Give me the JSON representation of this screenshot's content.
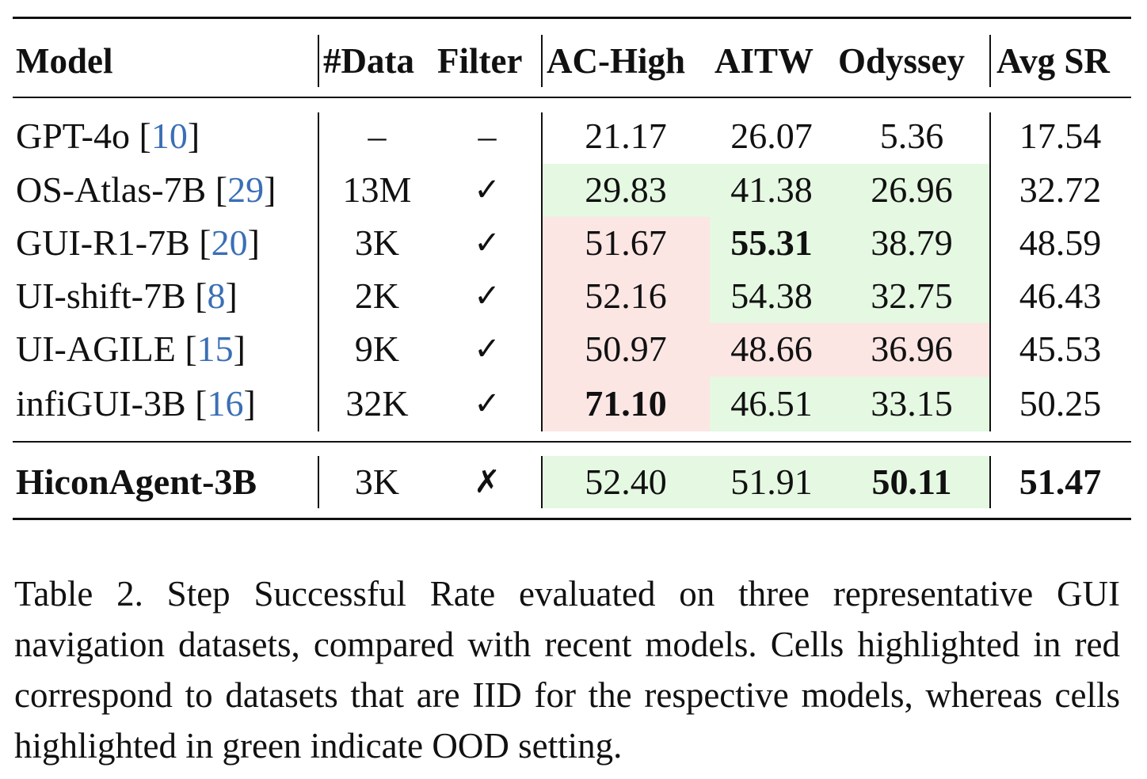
{
  "table": {
    "headers": {
      "model": "Model",
      "data": "#Data",
      "filter": "Filter",
      "ac_high": "AC-High",
      "aitw": "AITW",
      "odyssey": "Odyssey",
      "avg_sr": "Avg SR"
    },
    "rows": [
      {
        "name": "GPT-4o ",
        "cite": "10",
        "data": "–",
        "filter": "–",
        "ac_high": "21.17",
        "aitw": "26.07",
        "odyssey": "5.36",
        "avg": "17.54"
      },
      {
        "name": "OS-Atlas-7B ",
        "cite": "29",
        "data": "13M",
        "filter": "✓",
        "ac_high": "29.83",
        "aitw": "41.38",
        "odyssey": "26.96",
        "avg": "32.72"
      },
      {
        "name": "GUI-R1-7B ",
        "cite": "20",
        "data": "3K",
        "filter": "✓",
        "ac_high": "51.67",
        "aitw": "55.31",
        "odyssey": "38.79",
        "avg": "48.59"
      },
      {
        "name": "UI-shift-7B ",
        "cite": "8",
        "data": "2K",
        "filter": "✓",
        "ac_high": "52.16",
        "aitw": "54.38",
        "odyssey": "32.75",
        "avg": "46.43"
      },
      {
        "name": "UI-AGILE ",
        "cite": "15",
        "data": "9K",
        "filter": "✓",
        "ac_high": "50.97",
        "aitw": "48.66",
        "odyssey": "36.96",
        "avg": "45.53"
      },
      {
        "name": "infiGUI-3B ",
        "cite": "16",
        "data": "32K",
        "filter": "✓",
        "ac_high": "71.10",
        "aitw": "46.51",
        "odyssey": "33.15",
        "avg": "50.25"
      }
    ],
    "ours": {
      "name": "HiconAgent-3B",
      "data": "3K",
      "filter": "✗",
      "ac_high": "52.40",
      "aitw": "51.91",
      "odyssey": "50.11",
      "avg": "51.47"
    },
    "colors": {
      "green": "#e5f8e2",
      "red": "#fbe6e4",
      "cite": "#3b6fb5"
    }
  },
  "caption": "Table 2. Step Successful Rate evaluated on three representative GUI navigation datasets, compared with recent models. Cells highlighted in red correspond to datasets that are IID for the respective models, whereas cells highlighted in green indicate OOD setting."
}
